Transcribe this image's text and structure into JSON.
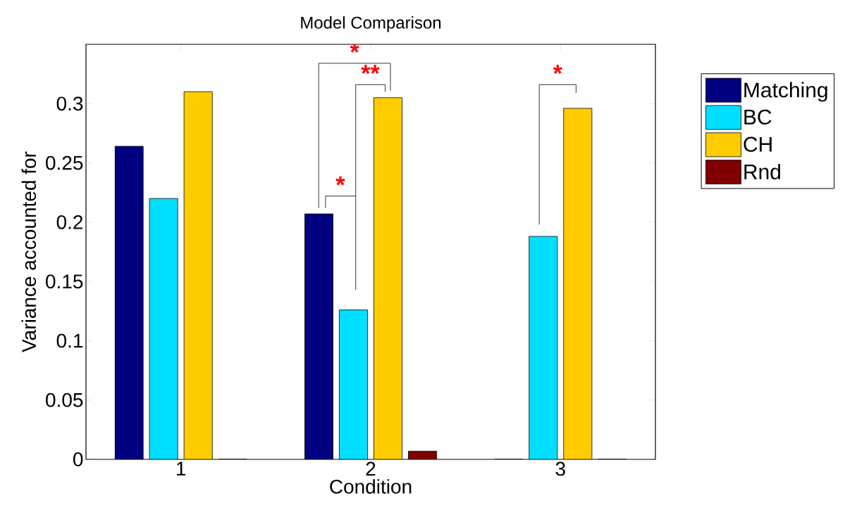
{
  "chart_data": {
    "type": "bar",
    "title": "Model Comparison",
    "xlabel": "Condition",
    "ylabel": "Variance accounted for",
    "categories": [
      "1",
      "2",
      "3"
    ],
    "series": [
      {
        "name": "Matching",
        "color": "#000080",
        "values": [
          0.264,
          0.207,
          0
        ]
      },
      {
        "name": "BC",
        "color": "#00dfff",
        "values": [
          0.22,
          0.126,
          0.188
        ]
      },
      {
        "name": "CH",
        "color": "#ffcc00",
        "values": [
          0.31,
          0.305,
          0.296
        ]
      },
      {
        "name": "Rnd",
        "color": "#800000",
        "values": [
          0,
          0.007,
          0
        ]
      }
    ],
    "ylim": [
      0,
      0.35
    ],
    "yticks": [
      0,
      0.05,
      0.1,
      0.15,
      0.2,
      0.25,
      0.3
    ],
    "legend": "right",
    "annotations": [
      "*",
      "**",
      "*",
      "*"
    ]
  }
}
